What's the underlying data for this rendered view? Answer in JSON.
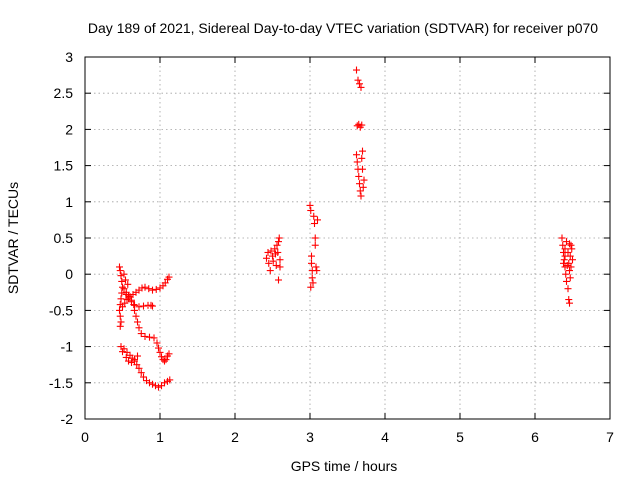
{
  "chart_data": {
    "type": "scatter",
    "title": "Day 189 of 2021, Sidereal Day-to-day VTEC variation (SDTVAR) for receiver p070",
    "xlabel": "GPS time / hours",
    "ylabel": "SDTVAR / TECUs",
    "xlim": [
      0,
      7
    ],
    "ylim": [
      -2,
      3
    ],
    "grid": true,
    "marker": "+",
    "color": "#ff0000",
    "x_ticks": [
      "0",
      "1",
      "2",
      "3",
      "4",
      "5",
      "6",
      "7"
    ],
    "y_ticks": [
      "-2",
      "-1.5",
      "-1",
      "-0.5",
      "0",
      "0.5",
      "1",
      "1.5",
      "2",
      "2.5",
      "3"
    ],
    "series": [
      {
        "name": "SDTVAR",
        "points": [
          [
            0.46,
            0.1
          ],
          [
            0.47,
            0.05
          ],
          [
            0.48,
            -0.02
          ],
          [
            0.49,
            -0.1
          ],
          [
            0.5,
            -0.18
          ],
          [
            0.49,
            -0.26
          ],
          [
            0.48,
            -0.34
          ],
          [
            0.47,
            -0.42
          ],
          [
            0.46,
            -0.5
          ],
          [
            0.47,
            -0.58
          ],
          [
            0.48,
            -0.66
          ],
          [
            0.47,
            -0.72
          ],
          [
            0.52,
            -0.2
          ],
          [
            0.55,
            -0.28
          ],
          [
            0.58,
            -0.33
          ],
          [
            0.62,
            -0.38
          ],
          [
            0.66,
            -0.43
          ],
          [
            0.72,
            -0.45
          ],
          [
            0.78,
            -0.44
          ],
          [
            0.84,
            -0.43
          ],
          [
            0.88,
            -0.43
          ],
          [
            0.9,
            -0.44
          ],
          [
            0.5,
            -0.45
          ],
          [
            0.53,
            -0.4
          ],
          [
            0.56,
            -0.35
          ],
          [
            0.6,
            -0.31
          ],
          [
            0.64,
            -0.28
          ],
          [
            0.68,
            -0.25
          ],
          [
            0.72,
            -0.22
          ],
          [
            0.76,
            -0.19
          ],
          [
            0.8,
            -0.18
          ],
          [
            0.85,
            -0.2
          ],
          [
            0.9,
            -0.22
          ],
          [
            0.95,
            -0.21
          ],
          [
            1.0,
            -0.19
          ],
          [
            1.04,
            -0.16
          ],
          [
            1.07,
            -0.12
          ],
          [
            1.1,
            -0.07
          ],
          [
            1.12,
            -0.04
          ],
          [
            0.55,
            -0.25
          ],
          [
            0.58,
            -0.3
          ],
          [
            0.62,
            -0.36
          ],
          [
            0.65,
            -0.42
          ],
          [
            0.66,
            -0.5
          ],
          [
            0.68,
            -0.58
          ],
          [
            0.7,
            -0.66
          ],
          [
            0.72,
            -0.74
          ],
          [
            0.75,
            -0.82
          ],
          [
            0.8,
            -0.86
          ],
          [
            0.86,
            -0.87
          ],
          [
            0.92,
            -0.88
          ],
          [
            0.96,
            -0.95
          ],
          [
            0.98,
            -1.02
          ],
          [
            1.0,
            -1.08
          ],
          [
            1.02,
            -1.14
          ],
          [
            1.04,
            -1.18
          ],
          [
            1.06,
            -1.2
          ],
          [
            1.08,
            -1.18
          ],
          [
            1.1,
            -1.13
          ],
          [
            1.12,
            -1.1
          ],
          [
            0.48,
            -1.0
          ],
          [
            0.52,
            -1.03
          ],
          [
            0.56,
            -1.08
          ],
          [
            0.6,
            -1.12
          ],
          [
            0.63,
            -1.16
          ],
          [
            0.66,
            -1.2
          ],
          [
            0.69,
            -1.25
          ],
          [
            0.72,
            -1.3
          ],
          [
            0.75,
            -1.36
          ],
          [
            0.78,
            -1.42
          ],
          [
            0.82,
            -1.47
          ],
          [
            0.86,
            -1.5
          ],
          [
            0.9,
            -1.52
          ],
          [
            0.94,
            -1.54
          ],
          [
            0.98,
            -1.56
          ],
          [
            1.02,
            -1.54
          ],
          [
            1.06,
            -1.5
          ],
          [
            1.1,
            -1.48
          ],
          [
            1.13,
            -1.46
          ],
          [
            0.5,
            -1.07
          ],
          [
            0.55,
            -1.15
          ],
          [
            0.58,
            -1.2
          ],
          [
            0.62,
            -1.22
          ],
          [
            0.66,
            -1.18
          ],
          [
            0.7,
            -1.13
          ],
          [
            0.52,
            0.0
          ],
          [
            0.54,
            -0.08
          ],
          [
            0.57,
            -0.14
          ],
          [
            2.42,
            0.22
          ],
          [
            2.44,
            0.3
          ],
          [
            2.45,
            0.15
          ],
          [
            2.47,
            0.05
          ],
          [
            2.48,
            0.32
          ],
          [
            2.5,
            0.25
          ],
          [
            2.51,
            0.18
          ],
          [
            2.53,
            0.35
          ],
          [
            2.54,
            0.28
          ],
          [
            2.55,
            0.12
          ],
          [
            2.56,
            0.4
          ],
          [
            2.57,
            0.3
          ],
          [
            2.58,
            0.45
          ],
          [
            2.59,
            0.5
          ],
          [
            2.6,
            0.2
          ],
          [
            2.6,
            0.1
          ],
          [
            2.58,
            -0.08
          ],
          [
            3.0,
            0.95
          ],
          [
            3.01,
            0.88
          ],
          [
            3.02,
            0.25
          ],
          [
            3.02,
            0.15
          ],
          [
            3.03,
            0.05
          ],
          [
            3.03,
            -0.05
          ],
          [
            3.04,
            -0.12
          ],
          [
            3.01,
            -0.18
          ],
          [
            3.05,
            0.8
          ],
          [
            3.06,
            0.7
          ],
          [
            3.07,
            0.5
          ],
          [
            3.07,
            0.4
          ],
          [
            3.08,
            0.1
          ],
          [
            3.09,
            0.05
          ],
          [
            3.1,
            0.75
          ],
          [
            3.62,
            2.82
          ],
          [
            3.64,
            2.68
          ],
          [
            3.66,
            2.63
          ],
          [
            3.68,
            2.58
          ],
          [
            3.63,
            2.05
          ],
          [
            3.65,
            2.07
          ],
          [
            3.67,
            2.03
          ],
          [
            3.69,
            2.06
          ],
          [
            3.62,
            1.65
          ],
          [
            3.63,
            1.55
          ],
          [
            3.64,
            1.45
          ],
          [
            3.65,
            1.35
          ],
          [
            3.66,
            1.25
          ],
          [
            3.67,
            1.15
          ],
          [
            3.68,
            1.08
          ],
          [
            3.69,
            1.6
          ],
          [
            3.7,
            1.7
          ],
          [
            3.71,
            1.2
          ],
          [
            3.72,
            1.3
          ],
          [
            3.7,
            1.45
          ],
          [
            6.36,
            0.5
          ],
          [
            6.37,
            0.4
          ],
          [
            6.38,
            0.3
          ],
          [
            6.39,
            0.2
          ],
          [
            6.4,
            0.1
          ],
          [
            6.41,
            0.0
          ],
          [
            6.42,
            -0.1
          ],
          [
            6.4,
            0.35
          ],
          [
            6.42,
            0.45
          ],
          [
            6.44,
            0.3
          ],
          [
            6.45,
            0.15
          ],
          [
            6.46,
            0.05
          ],
          [
            6.44,
            -0.2
          ],
          [
            6.45,
            -0.35
          ],
          [
            6.46,
            -0.4
          ],
          [
            6.47,
            0.25
          ],
          [
            6.48,
            0.4
          ],
          [
            6.49,
            0.35
          ],
          [
            6.5,
            0.2
          ],
          [
            6.48,
            0.1
          ],
          [
            6.47,
            -0.05
          ],
          [
            6.38,
            0.15
          ],
          [
            6.4,
            0.25
          ],
          [
            6.43,
            0.12
          ],
          [
            6.46,
            0.42
          ]
        ]
      }
    ]
  }
}
